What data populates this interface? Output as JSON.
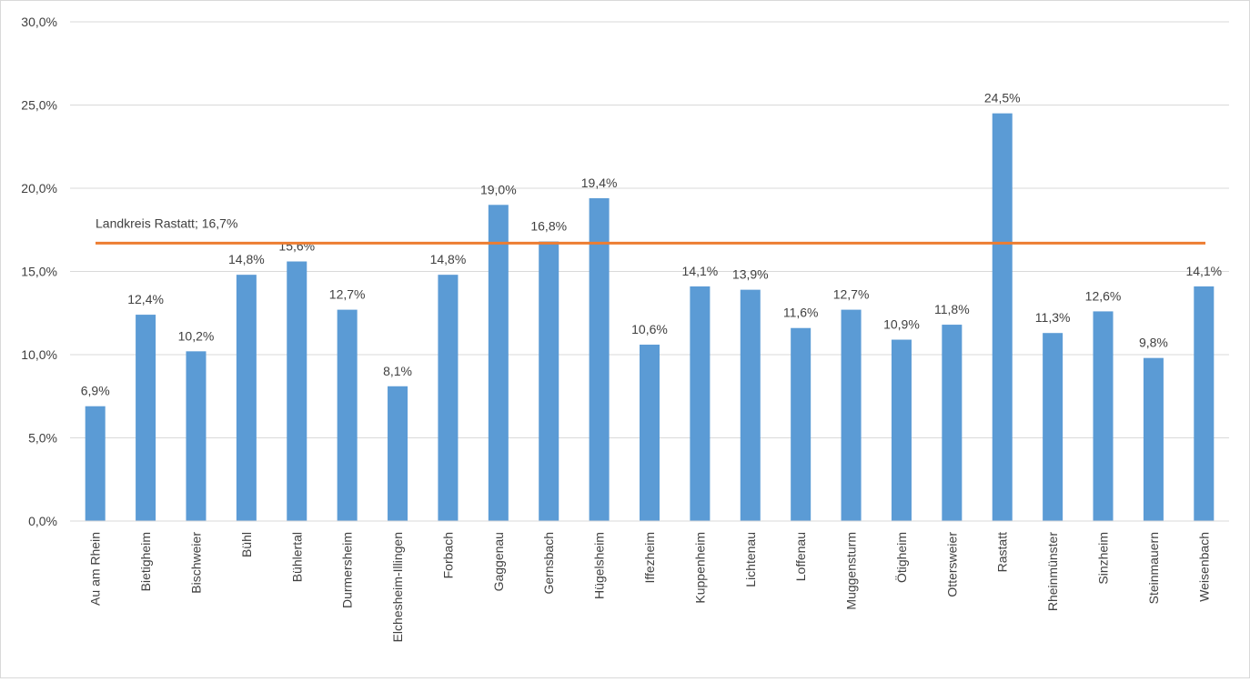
{
  "chart_data": {
    "type": "bar",
    "categories": [
      "Au am Rhein",
      "Bietigheim",
      "Bischweier",
      "Bühl",
      "Bühlertal",
      "Durmersheim",
      "Elchesheim-Illingen",
      "Forbach",
      "Gaggenau",
      "Gernsbach",
      "Hügelsheim",
      "Iffezheim",
      "Kuppenheim",
      "Lichtenau",
      "Loffenau",
      "Muggensturm",
      "Ötigheim",
      "Ottersweier",
      "Rastatt",
      "Rheinmünster",
      "Sinzheim",
      "Steinmauern",
      "Weisenbach"
    ],
    "values": [
      6.9,
      12.4,
      10.2,
      14.8,
      15.6,
      12.7,
      8.1,
      14.8,
      19.0,
      16.8,
      19.4,
      10.6,
      14.1,
      13.9,
      11.6,
      12.7,
      10.9,
      11.8,
      24.5,
      11.3,
      12.6,
      9.8,
      14.1
    ],
    "value_labels": [
      "6,9%",
      "12,4%",
      "10,2%",
      "14,8%",
      "15,6%",
      "12,7%",
      "8,1%",
      "14,8%",
      "19,0%",
      "16,8%",
      "19,4%",
      "10,6%",
      "14,1%",
      "13,9%",
      "11,6%",
      "12,7%",
      "10,9%",
      "11,8%",
      "24,5%",
      "11,3%",
      "12,6%",
      "9,8%",
      "14,1%"
    ],
    "ylim": [
      0,
      30
    ],
    "y_ticks": [
      "0,0%",
      "5,0%",
      "10,0%",
      "15,0%",
      "20,0%",
      "25,0%",
      "30,0%"
    ],
    "y_tick_values": [
      0,
      5,
      10,
      15,
      20,
      25,
      30
    ],
    "grid": true,
    "reference_line": {
      "value": 16.7,
      "label": "Landkreis Rastatt; 16,7%"
    },
    "colors": {
      "bar": "#5b9bd5",
      "reference_line": "#ed7d31",
      "grid": "#d9d9d9",
      "text": "#404040"
    }
  }
}
